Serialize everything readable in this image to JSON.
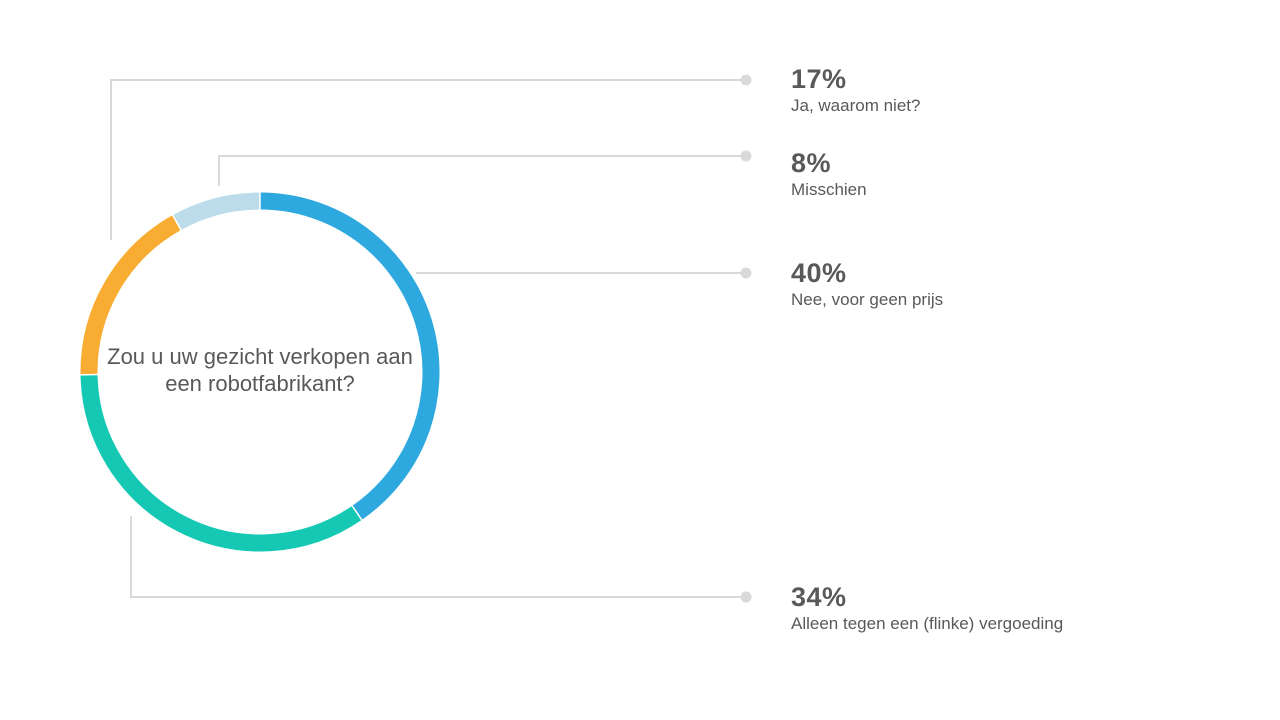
{
  "chart_data": {
    "type": "pie",
    "title": "Zou u uw gezicht verkopen aan een robotfabrikant?",
    "slices": [
      {
        "label": "Nee, voor geen prijs",
        "value": 40,
        "value_label": "40%",
        "color": "#2EA9E0"
      },
      {
        "label": "Alleen tegen een (flinke) vergoeding",
        "value": 34,
        "value_label": "34%",
        "color": "#14C8B4"
      },
      {
        "label": "Ja, waarom niet?",
        "value": 17,
        "value_label": "17%",
        "color": "#F9AC32"
      },
      {
        "label": "Misschien",
        "value": 8,
        "value_label": "8%",
        "color": "#BDDCEB"
      }
    ]
  }
}
